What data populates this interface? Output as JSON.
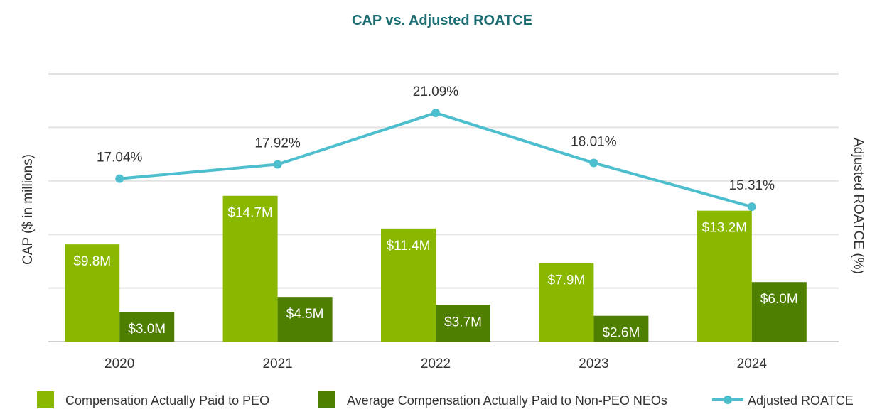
{
  "chart_data": {
    "type": "bar",
    "title": "CAP vs. Adjusted ROATCE",
    "ylabel": "CAP ($ in millions)",
    "y2label": "Adjusted ROATCE (%)",
    "categories": [
      "2020",
      "2021",
      "2022",
      "2023",
      "2024"
    ],
    "ylim": [
      0,
      27
    ],
    "y2lim": [
      7,
      23.5
    ],
    "grid": true,
    "legend_position": "bottom",
    "series": [
      {
        "name": "Compensation Actually Paid to PEO",
        "type": "bar",
        "axis": "left",
        "color": "#8ab800",
        "values": [
          9.8,
          14.7,
          11.4,
          7.9,
          13.2
        ],
        "labels": [
          "$9.8M",
          "$14.7M",
          "$11.4M",
          "$7.9M",
          "$13.2M"
        ]
      },
      {
        "name": "Average Compensation Actually Paid to Non-PEO NEOs",
        "type": "bar",
        "axis": "left",
        "color": "#4f7f00",
        "values": [
          3.0,
          4.5,
          3.7,
          2.6,
          6.0
        ],
        "labels": [
          "$3.0M",
          "$4.5M",
          "$3.7M",
          "$2.6M",
          "$6.0M"
        ]
      },
      {
        "name": "Adjusted ROATCE",
        "type": "line",
        "axis": "right",
        "color": "#4dbecd",
        "values": [
          17.04,
          17.92,
          21.09,
          18.01,
          15.31
        ],
        "labels": [
          "17.04%",
          "17.92%",
          "21.09%",
          "18.01%",
          "15.31%"
        ]
      }
    ]
  },
  "colors": {
    "title": "#1a6e73",
    "grid": "#e3e3e3",
    "baseline": "#cfcfcf"
  }
}
